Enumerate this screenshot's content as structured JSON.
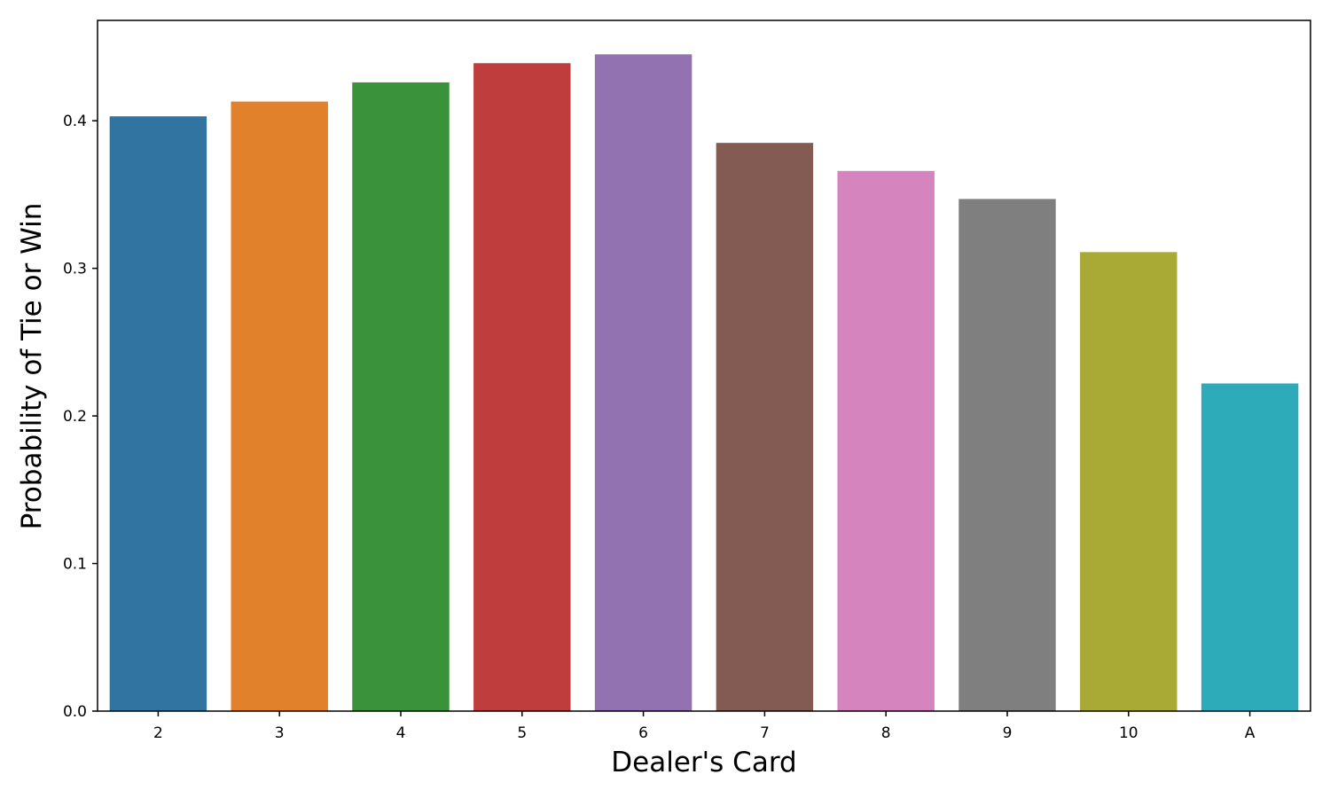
{
  "chart_data": {
    "type": "bar",
    "title": "",
    "xlabel": "Dealer's Card",
    "ylabel": "Probability of Tie or Win",
    "categories": [
      "2",
      "3",
      "4",
      "5",
      "6",
      "7",
      "8",
      "9",
      "10",
      "A"
    ],
    "values": [
      0.403,
      0.413,
      0.426,
      0.439,
      0.445,
      0.385,
      0.366,
      0.347,
      0.311,
      0.222
    ],
    "colors": [
      "#3274a1",
      "#e1812c",
      "#3a923a",
      "#c03d3e",
      "#9372b2",
      "#845b53",
      "#d684bd",
      "#7f7f7f",
      "#a9aa35",
      "#2eabb8"
    ],
    "ylim": [
      0,
      0.468
    ],
    "yticks": [
      0.0,
      0.1,
      0.2,
      0.3,
      0.4
    ],
    "ytick_labels": [
      "0.0",
      "0.1",
      "0.2",
      "0.3",
      "0.4"
    ],
    "grid": false,
    "legend": "none"
  }
}
